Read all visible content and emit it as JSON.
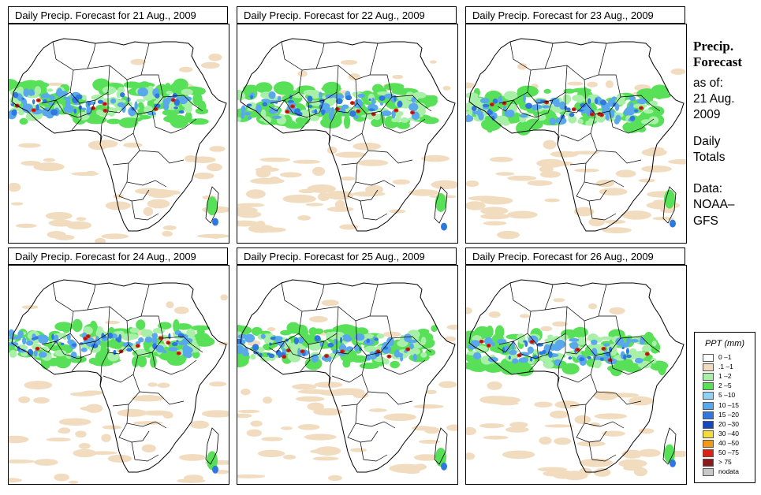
{
  "panels": [
    {
      "title": "Daily Precip. Forecast for  21 Aug., 2009",
      "variant": 1
    },
    {
      "title": "Daily Precip. Forecast for  22 Aug., 2009",
      "variant": 2
    },
    {
      "title": "Daily Precip. Forecast for  23 Aug., 2009",
      "variant": 3
    },
    {
      "title": "Daily Precip. Forecast for  24 Aug., 2009",
      "variant": 4
    },
    {
      "title": "Daily Precip. Forecast for  25 Aug., 2009",
      "variant": 5
    },
    {
      "title": "Daily Precip. Forecast for  26 Aug., 2009",
      "variant": 6
    }
  ],
  "side": {
    "title_line1": "Precip.",
    "title_line2": "Forecast",
    "asof": "as of:",
    "date1": "21 Aug.",
    "date2": "2009",
    "daily1": "Daily",
    "daily2": "Totals",
    "data1": "Data:",
    "data2": "NOAA–",
    "data3": "GFS"
  },
  "legend": {
    "title": "PPT (mm)",
    "items": [
      {
        "label": "0 –1",
        "color": "#ffffff"
      },
      {
        "label": ".1 –1",
        "color": "#f2dcbf"
      },
      {
        "label": "1 –2",
        "color": "#a8f0a8"
      },
      {
        "label": "2 –5",
        "color": "#58e058"
      },
      {
        "label": "5 –10",
        "color": "#90d0f5"
      },
      {
        "label": "10 –15",
        "color": "#5aa8ec"
      },
      {
        "label": "15 –20",
        "color": "#2f78e0"
      },
      {
        "label": "20 –30",
        "color": "#1646c0"
      },
      {
        "label": "30 –40",
        "color": "#f4dc3a"
      },
      {
        "label": "40 –50",
        "color": "#f29a18"
      },
      {
        "label": "50 –75",
        "color": "#e02010"
      },
      {
        "label": "> 75",
        "color": "#8c1a1a"
      },
      {
        "label": "nodata",
        "color": "#c8c8c8"
      }
    ]
  }
}
